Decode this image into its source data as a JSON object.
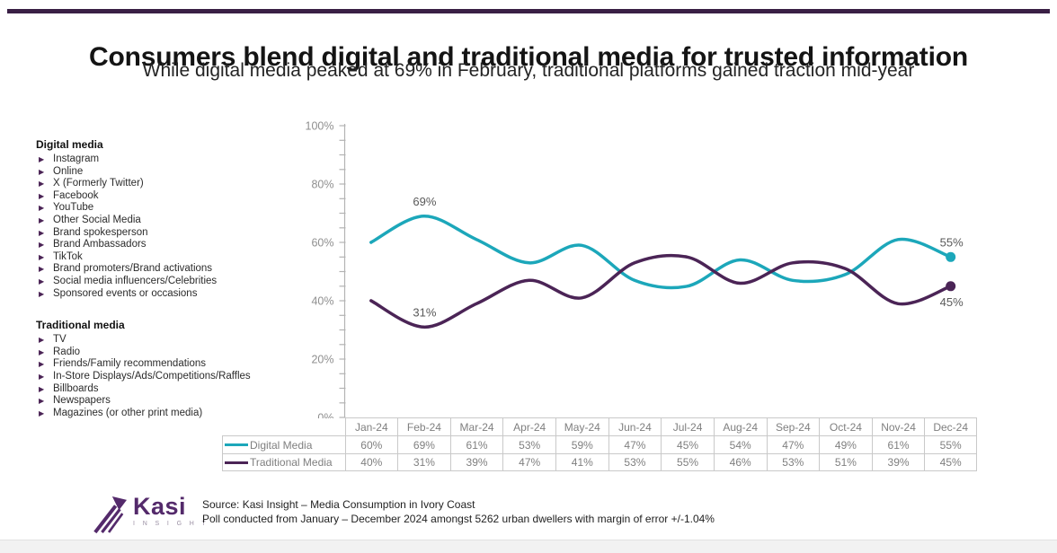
{
  "page": {
    "title": "Consumers blend digital and traditional media for trusted information",
    "subtitle": "While digital media peaked at 69% in February, traditional platforms gained traction mid-year"
  },
  "colors": {
    "accent_bar": "#3a1f45",
    "digital": "#1ca7ba",
    "traditional": "#4b2456",
    "axis": "#b3b3b3",
    "axis_text": "#8f8f8f",
    "table_border": "#c9c9c9",
    "table_text": "#7f7f7f",
    "logo_purple": "#542a6b"
  },
  "sidebar": {
    "digital": {
      "heading": "Digital media",
      "items": [
        "Instagram",
        "Online",
        "X (Formerly Twitter)",
        "Facebook",
        "YouTube",
        "Other Social Media",
        "Brand spokesperson",
        "Brand Ambassadors",
        "TikTok",
        "Brand promoters/Brand activations",
        "Social media influencers/Celebrities",
        "Sponsored events or occasions"
      ]
    },
    "traditional": {
      "heading": "Traditional media",
      "items": [
        "TV",
        "Radio",
        "Friends/Family recommendations",
        "In-Store Displays/Ads/Competitions/Raffles",
        "Billboards",
        "Newspapers",
        "Magazines (or other print media)"
      ]
    }
  },
  "chart_data": {
    "type": "line",
    "title": "Consumers blend digital and traditional media for trusted information",
    "categories": [
      "Jan-24",
      "Feb-24",
      "Mar-24",
      "Apr-24",
      "May-24",
      "Jun-24",
      "Jul-24",
      "Aug-24",
      "Sep-24",
      "Oct-24",
      "Nov-24",
      "Dec-24"
    ],
    "series": [
      {
        "name": "Digital Media",
        "color": "#1ca7ba",
        "values": [
          60,
          69,
          61,
          53,
          59,
          47,
          45,
          54,
          47,
          49,
          61,
          55
        ]
      },
      {
        "name": "Traditional Media",
        "color": "#4b2456",
        "values": [
          40,
          31,
          39,
          47,
          41,
          53,
          55,
          46,
          53,
          51,
          39,
          45
        ]
      }
    ],
    "xlabel": "",
    "ylabel": "",
    "ylim": [
      0,
      100
    ],
    "ytick_step": 20,
    "minor_tick_step": 5,
    "ytick_labels": [
      "0%",
      "20%",
      "40%",
      "60%",
      "80%",
      "100%"
    ],
    "grid": false,
    "smooth": true,
    "end_dots": true,
    "legend_position": "table-left",
    "annotations": [
      {
        "series": "Digital Media",
        "category": "Feb-24",
        "label": "69%",
        "placement": "above"
      },
      {
        "series": "Traditional Media",
        "category": "Feb-24",
        "label": "31%",
        "placement": "above"
      },
      {
        "series": "Digital Media",
        "category": "Dec-24",
        "label": "55%",
        "placement": "above"
      },
      {
        "series": "Traditional Media",
        "category": "Dec-24",
        "label": "45%",
        "placement": "below"
      }
    ]
  },
  "table": {
    "columns": [
      "Jan-24",
      "Feb-24",
      "Mar-24",
      "Apr-24",
      "May-24",
      "Jun-24",
      "Jul-24",
      "Aug-24",
      "Sep-24",
      "Oct-24",
      "Nov-24",
      "Dec-24"
    ],
    "rows": [
      {
        "label": "Digital Media",
        "values": [
          "60%",
          "69%",
          "61%",
          "53%",
          "59%",
          "47%",
          "45%",
          "54%",
          "47%",
          "49%",
          "61%",
          "55%"
        ]
      },
      {
        "label": "Traditional Media",
        "values": [
          "40%",
          "31%",
          "39%",
          "47%",
          "41%",
          "53%",
          "55%",
          "46%",
          "53%",
          "51%",
          "39%",
          "45%"
        ]
      }
    ]
  },
  "footer": {
    "logo_name": "Kasi",
    "logo_sub": "I N S I G H T",
    "source_line1": "Source: Kasi Insight – Media Consumption in Ivory Coast",
    "source_line2": "Poll conducted from January – December 2024 amongst 5262 urban dwellers with margin of error +/-1.04%"
  }
}
